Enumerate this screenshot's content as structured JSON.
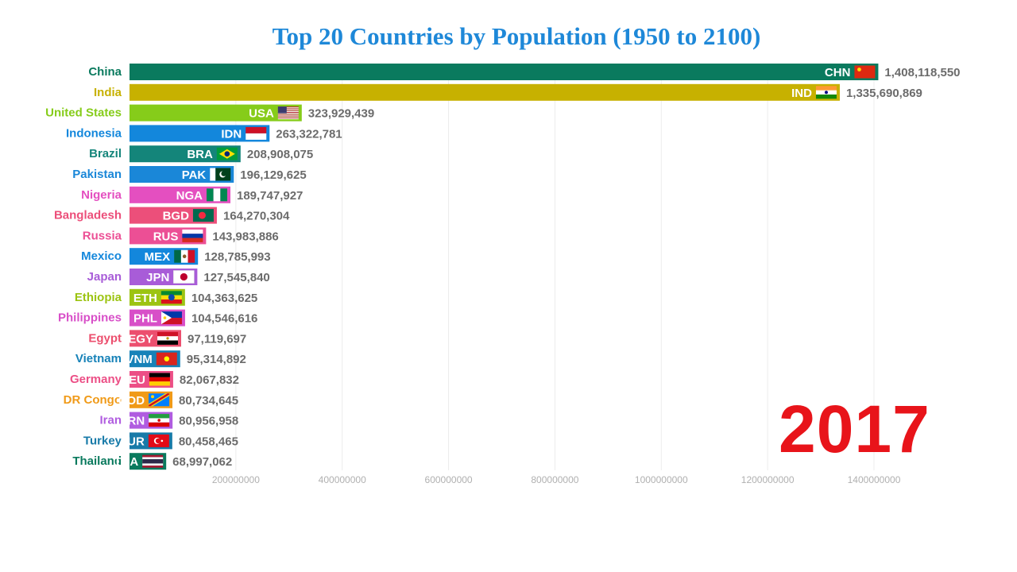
{
  "chart_data": {
    "type": "bar",
    "orientation": "horizontal",
    "title": "Top 20 Countries by Population (1950 to 2100)",
    "year": "2017",
    "xlim": [
      0,
      1500000000
    ],
    "grid": true,
    "ticks": [
      "200000000",
      "400000000",
      "600000000",
      "800000000",
      "1000000000",
      "1200000000",
      "1400000000"
    ],
    "tick_values": [
      200000000,
      400000000,
      600000000,
      800000000,
      1000000000,
      1200000000,
      1400000000
    ],
    "bars": [
      {
        "country": "China",
        "code": "CHN",
        "value": 1408118550,
        "label": "1,408,118,550",
        "color": "#0a7a5e",
        "flag": "china-flag-icon"
      },
      {
        "country": "India",
        "code": "IND",
        "value": 1335690869,
        "label": "1,335,690,869",
        "color": "#c7b100",
        "flag": "india-flag-icon"
      },
      {
        "country": "United States",
        "code": "USA",
        "value": 323929439,
        "label": "323,929,439",
        "color": "#86cc1a",
        "flag": "usa-flag-icon"
      },
      {
        "country": "Indonesia",
        "code": "IDN",
        "value": 263322781,
        "label": "263,322,781",
        "color": "#1387dc",
        "flag": "indonesia-flag-icon"
      },
      {
        "country": "Brazil",
        "code": "BRA",
        "value": 208908075,
        "label": "208,908,075",
        "color": "#14857a",
        "flag": "brazil-flag-icon"
      },
      {
        "country": "Pakistan",
        "code": "PAK",
        "value": 196129625,
        "label": "196,129,625",
        "color": "#1a87d8",
        "flag": "pakistan-flag-icon"
      },
      {
        "country": "Nigeria",
        "code": "NGA",
        "value": 189747927,
        "label": "189,747,927",
        "color": "#e44fc0",
        "flag": "nigeria-flag-icon"
      },
      {
        "country": "Bangladesh",
        "code": "BGD",
        "value": 164270304,
        "label": "164,270,304",
        "color": "#ec4f7a",
        "flag": "bangladesh-flag-icon"
      },
      {
        "country": "Russia",
        "code": "RUS",
        "value": 143983886,
        "label": "143,983,886",
        "color": "#ec4f95",
        "flag": "russia-flag-icon"
      },
      {
        "country": "Mexico",
        "code": "MEX",
        "value": 128785993,
        "label": "128,785,993",
        "color": "#1387dc",
        "flag": "mexico-flag-icon"
      },
      {
        "country": "Japan",
        "code": "JPN",
        "value": 127545840,
        "label": "127,545,840",
        "color": "#a85cd8",
        "flag": "japan-flag-icon"
      },
      {
        "country": "Ethiopia",
        "code": "ETH",
        "value": 104363625,
        "label": "104,363,625",
        "color": "#9cc412",
        "flag": "ethiopia-flag-icon"
      },
      {
        "country": "Philippines",
        "code": "PHL",
        "value": 104546616,
        "label": "104,546,616",
        "color": "#d84fc8",
        "flag": "philippines-flag-icon"
      },
      {
        "country": "Egypt",
        "code": "EGY",
        "value": 97119697,
        "label": "97,119,697",
        "color": "#ec4f6e",
        "flag": "egypt-flag-icon"
      },
      {
        "country": "Vietnam",
        "code": "VNM",
        "value": 95314892,
        "label": "95,314,892",
        "color": "#1782b8",
        "flag": "vietnam-flag-icon"
      },
      {
        "country": "Germany",
        "code": "DEU",
        "value": 82067832,
        "label": "82,067,832",
        "color": "#ec4f86",
        "flag": "germany-flag-icon"
      },
      {
        "country": "DR Congo",
        "code": "COD",
        "value": 80734645,
        "label": "80,734,645",
        "color": "#f09a18",
        "flag": "drcongo-flag-icon"
      },
      {
        "country": "Iran",
        "code": "IRN",
        "value": 80956958,
        "label": "80,956,958",
        "color": "#b05ce0",
        "flag": "iran-flag-icon"
      },
      {
        "country": "Turkey",
        "code": "TUR",
        "value": 80458465,
        "label": "80,458,465",
        "color": "#177aa8",
        "flag": "turkey-flag-icon"
      },
      {
        "country": "Thailand",
        "code": "THA",
        "value": 68997062,
        "label": "68,997,062",
        "color": "#0a7a5e",
        "flag": "thailand-flag-icon"
      }
    ]
  }
}
